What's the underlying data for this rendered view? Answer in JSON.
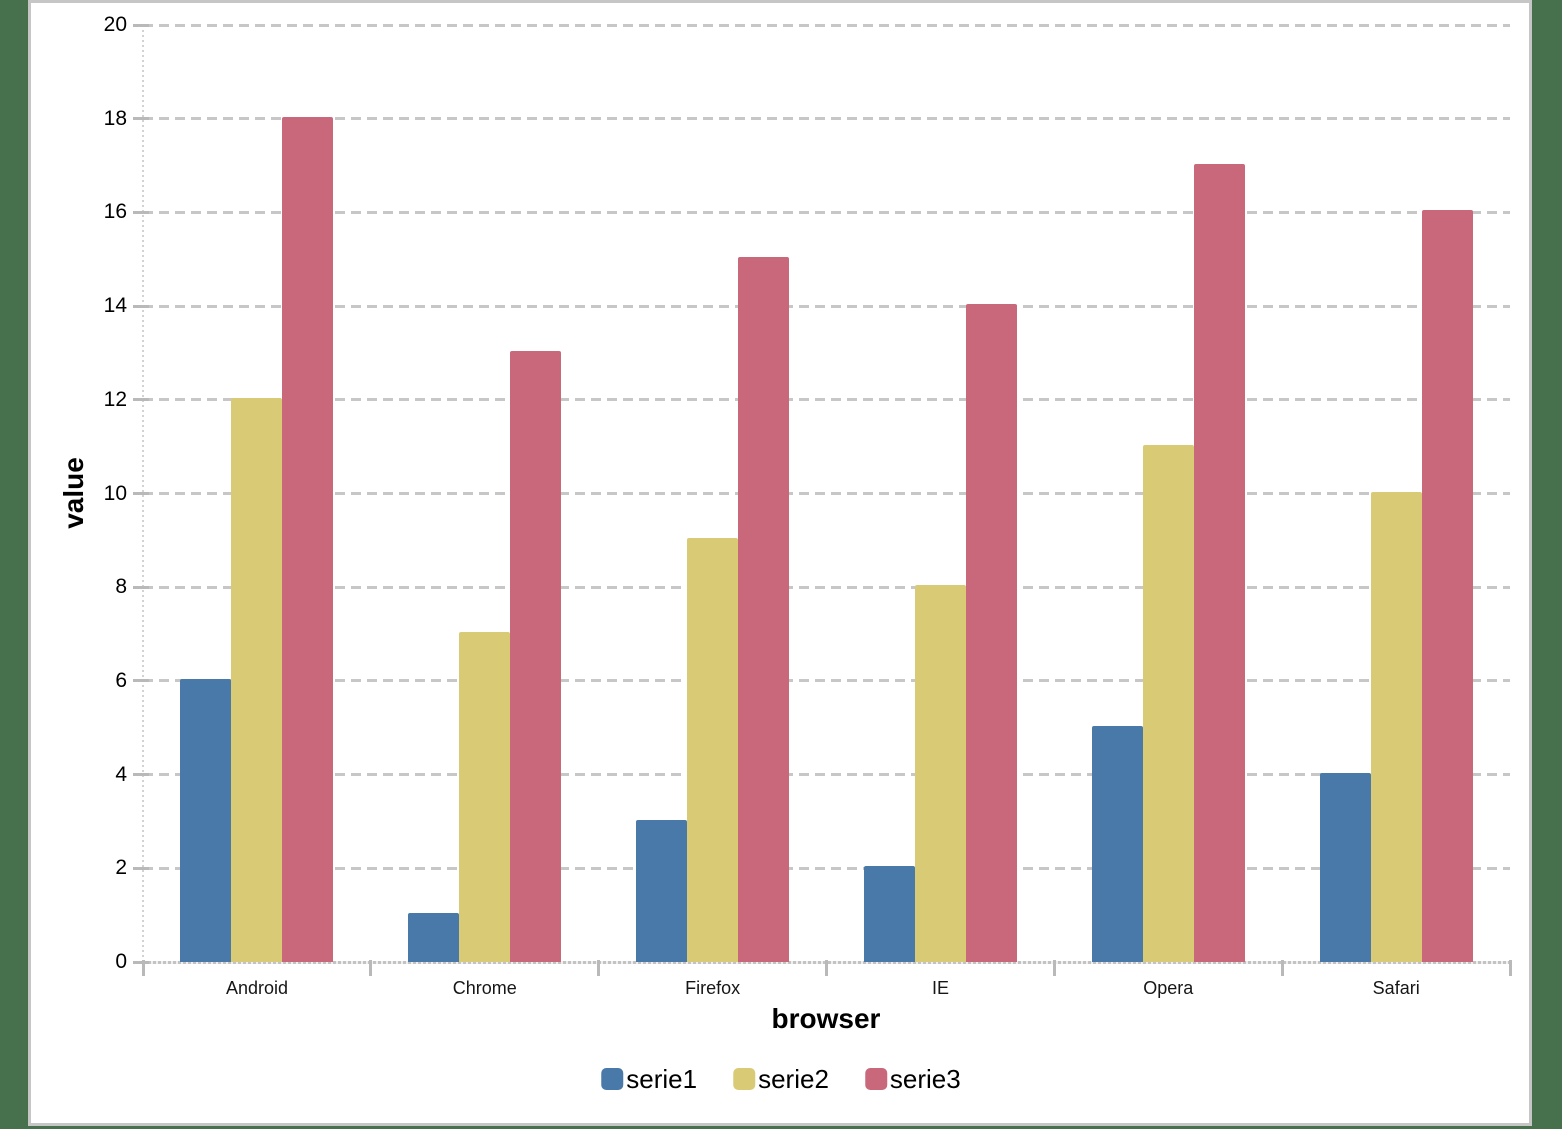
{
  "chart_data": {
    "type": "bar",
    "title": "",
    "categories": [
      "Android",
      "Chrome",
      "Firefox",
      "IE",
      "Opera",
      "Safari"
    ],
    "series": [
      {
        "name": "serie1",
        "color": "#4879A8",
        "values": [
          6,
          1,
          3,
          2,
          5,
          4
        ]
      },
      {
        "name": "serie2",
        "color": "#D9CB76",
        "values": [
          12,
          7,
          9,
          8,
          11,
          10
        ]
      },
      {
        "name": "serie3",
        "color": "#C9687B",
        "values": [
          18,
          13,
          15,
          14,
          17,
          16
        ]
      }
    ],
    "xlabel": "browser",
    "ylabel": "value",
    "ylim": [
      0,
      20
    ],
    "yticks": [
      0,
      2,
      4,
      6,
      8,
      10,
      12,
      14,
      16,
      18,
      20
    ],
    "grid": "horizontal-dashed",
    "legend_position": "bottom-center"
  },
  "colors": {
    "background": "#47704d",
    "panel": "#ffffff",
    "panel_border": "#c6c6c6",
    "gridline": "#c7c7c7",
    "tick": "#b9b9b9",
    "text": "#000000"
  }
}
